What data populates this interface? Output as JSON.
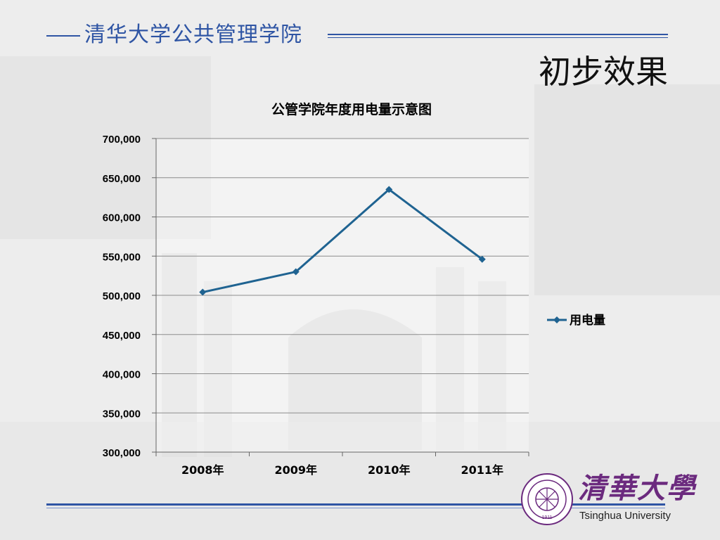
{
  "header": {
    "school_name": "清华大学公共管理学院",
    "slide_title": "初步效果"
  },
  "chart_data": {
    "type": "line",
    "title": "公管学院年度用电量示意图",
    "categories": [
      "2008年",
      "2009年",
      "2010年",
      "2011年"
    ],
    "series": [
      {
        "name": "用电量",
        "values": [
          504000,
          530000,
          635000,
          546000
        ],
        "color": "#1f6391"
      }
    ],
    "ylim": [
      300000,
      700000
    ],
    "ytick_step": 50000,
    "ytick_labels": [
      "300,000",
      "350,000",
      "400,000",
      "450,000",
      "500,000",
      "550,000",
      "600,000",
      "650,000",
      "700,000"
    ],
    "grid": true,
    "legend": "right"
  },
  "footer": {
    "university_cn": "清華大學",
    "university_en": "Tsinghua University",
    "seal_text": "1911"
  },
  "colors": {
    "accent": "#2f55a4",
    "series": "#1f6391",
    "grid": "#8c8c8c",
    "brand": "#6b2a7e"
  }
}
